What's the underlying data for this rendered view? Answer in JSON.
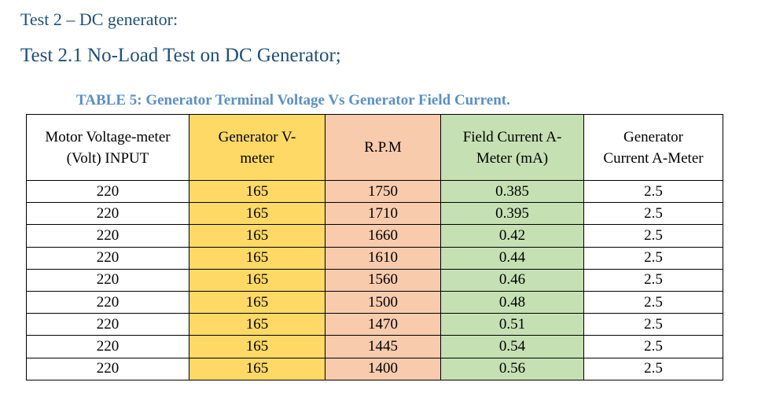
{
  "header": {
    "title": "Test 2 – DC generator:",
    "subtitle": "Test 2.1 No-Load Test on DC Generator;"
  },
  "table": {
    "caption": "TABLE 5: Generator Terminal Voltage Vs Generator Field Current.",
    "columns": [
      "Motor Voltage-meter (Volt) INPUT",
      "Generator V-meter",
      "R.P.M",
      "Field Current A-Meter (mA)",
      "Generator Current A-Meter"
    ],
    "rows": [
      [
        220,
        165,
        1750,
        0.385,
        2.5
      ],
      [
        220,
        165,
        1710,
        0.395,
        2.5
      ],
      [
        220,
        165,
        1660,
        0.42,
        2.5
      ],
      [
        220,
        165,
        1610,
        0.44,
        2.5
      ],
      [
        220,
        165,
        1560,
        0.46,
        2.5
      ],
      [
        220,
        165,
        1500,
        0.48,
        2.5
      ],
      [
        220,
        165,
        1470,
        0.51,
        2.5
      ],
      [
        220,
        165,
        1445,
        0.54,
        2.5
      ],
      [
        220,
        165,
        1400,
        0.56,
        2.5
      ]
    ]
  }
}
